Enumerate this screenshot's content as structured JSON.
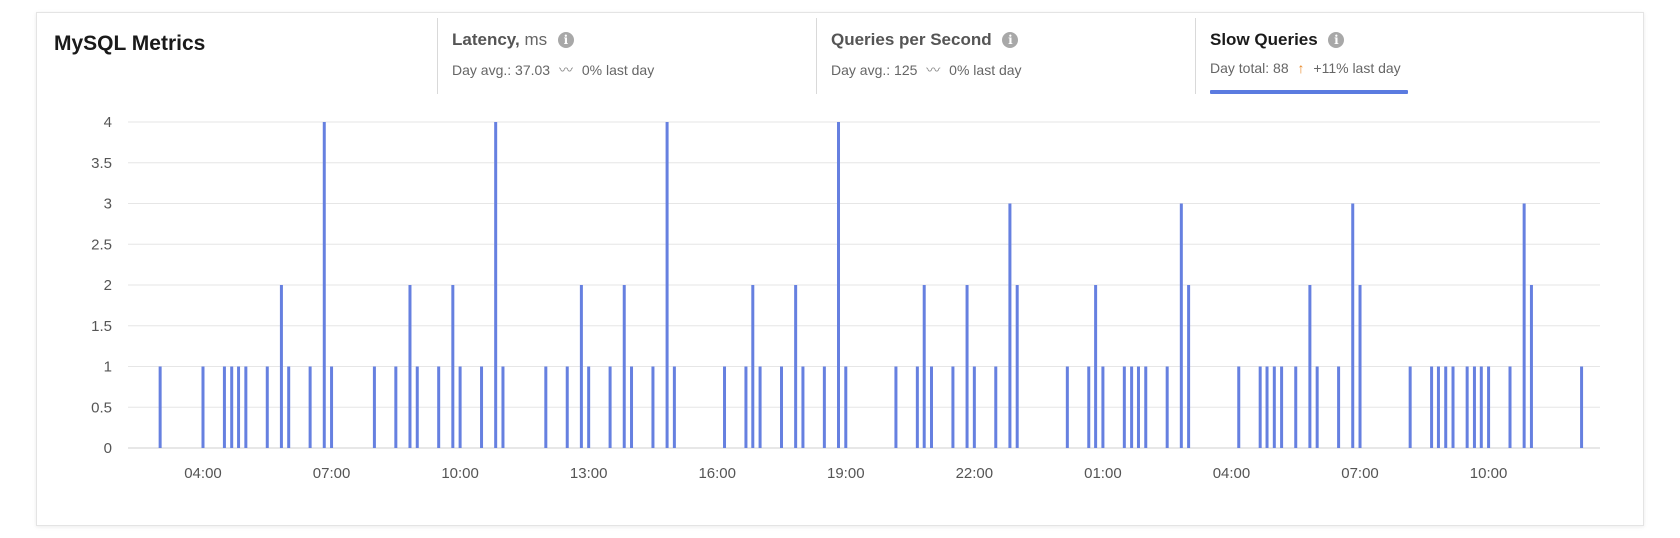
{
  "header": {
    "title": "MySQL Metrics",
    "metrics": [
      {
        "name": "Latency,",
        "unit": "ms",
        "sub_label": "Day avg.: 37.03",
        "trend": "flat",
        "trend_symbol": "〰",
        "change": "0% last day"
      },
      {
        "name": "Queries per Second",
        "unit": "",
        "sub_label": "Day avg.: 125",
        "trend": "flat",
        "trend_symbol": "〰",
        "change": "0% last day"
      },
      {
        "name": "Slow Queries",
        "unit": "",
        "sub_label": "Day total: 88",
        "trend": "up",
        "trend_symbol": "↑",
        "change": "+11% last day",
        "active": true
      }
    ]
  },
  "colors": {
    "bar": "#6680e0",
    "active_underline": "#5b7be0",
    "trend_up": "#e8892b",
    "grid": "#e6e6e6"
  },
  "icons": {
    "info": "info-icon"
  },
  "chart_data": {
    "type": "bar",
    "title": "",
    "xlabel": "",
    "ylabel": "",
    "ylim": [
      0,
      4
    ],
    "yticks": [
      0,
      0.5,
      1,
      1.5,
      2,
      2.5,
      3,
      3.5,
      4
    ],
    "ytick_labels": [
      "0",
      "0.5",
      "1",
      "1.5",
      "2",
      "2.5",
      "3",
      "3.5",
      "4"
    ],
    "grid": true,
    "x_unit": "hours",
    "xlim": [
      2.25,
      36.6
    ],
    "xticks": [
      4,
      7,
      10,
      13,
      16,
      19,
      22,
      25,
      28,
      31,
      34
    ],
    "xtick_labels": [
      "04:00",
      "07:00",
      "10:00",
      "13:00",
      "16:00",
      "19:00",
      "22:00",
      "01:00",
      "04:00",
      "07:00",
      "10:00"
    ],
    "series": [
      {
        "x": [
          3.0,
          4.0,
          4.5,
          4.67,
          4.83,
          5.0,
          5.5,
          5.83,
          6.0,
          6.5,
          6.83,
          7.0,
          8.0,
          8.5,
          8.83,
          9.0,
          9.5,
          9.83,
          10.0,
          10.5,
          10.83,
          11.0,
          12.0,
          12.5,
          12.83,
          13.0,
          13.5,
          13.83,
          14.0,
          14.5,
          14.83,
          15.0,
          16.17,
          16.67,
          16.83,
          17.0,
          17.5,
          17.83,
          18.0,
          18.5,
          18.83,
          19.0,
          20.17,
          20.67,
          20.83,
          21.0,
          21.5,
          21.83,
          22.0,
          22.5,
          22.83,
          23.0,
          24.17,
          24.67,
          24.83,
          25.0,
          25.5,
          25.67,
          25.83,
          26.0,
          26.5,
          26.83,
          27.0,
          28.17,
          28.67,
          28.83,
          29.0,
          29.17,
          29.5,
          29.83,
          30.0,
          30.5,
          30.83,
          31.0,
          32.17,
          32.67,
          32.83,
          33.0,
          33.17,
          33.5,
          33.67,
          33.83,
          34.0,
          34.5,
          34.83,
          35.0,
          36.17
        ],
        "values": [
          1,
          1,
          1,
          1,
          1,
          1,
          1,
          2,
          1,
          1,
          4,
          1,
          1,
          1,
          2,
          1,
          1,
          2,
          1,
          1,
          4,
          1,
          1,
          1,
          2,
          1,
          1,
          2,
          1,
          1,
          4,
          1,
          1,
          1,
          2,
          1,
          1,
          2,
          1,
          1,
          4,
          1,
          1,
          1,
          2,
          1,
          1,
          2,
          1,
          1,
          3,
          2,
          1,
          1,
          2,
          1,
          1,
          1,
          1,
          1,
          1,
          3,
          2,
          1,
          1,
          1,
          1,
          1,
          1,
          2,
          1,
          1,
          3,
          2,
          1,
          1,
          1,
          1,
          1,
          1,
          1,
          1,
          1,
          1,
          3,
          2,
          1
        ]
      }
    ]
  }
}
